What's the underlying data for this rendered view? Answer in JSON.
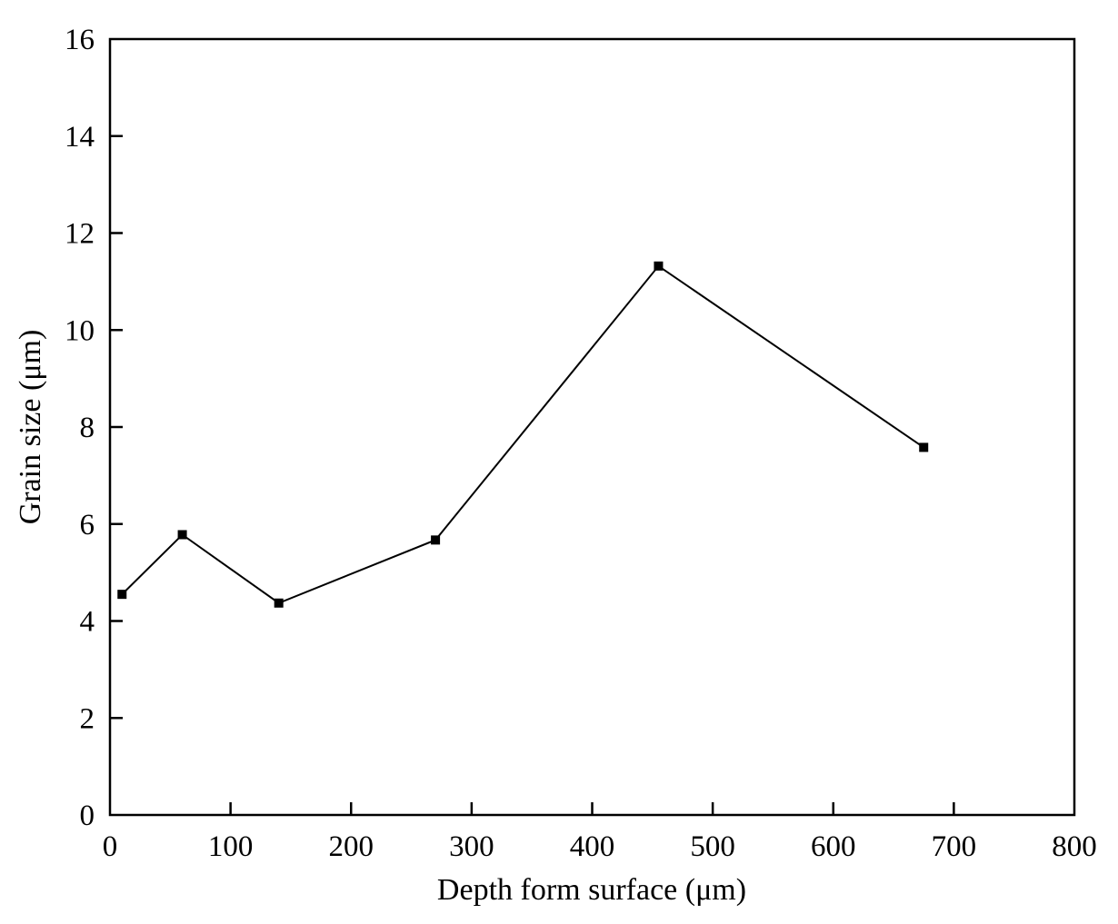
{
  "chart_data": {
    "type": "line",
    "xlabel": "Depth form surface (μm)",
    "ylabel": "Grain size (μm)",
    "xlim": [
      0,
      800
    ],
    "ylim": [
      0,
      16
    ],
    "x_ticks": [
      0,
      100,
      200,
      300,
      400,
      500,
      600,
      700,
      800
    ],
    "y_ticks": [
      0,
      2,
      4,
      6,
      8,
      10,
      12,
      14,
      16
    ],
    "grid": false,
    "legend": "none",
    "series": [
      {
        "x": [
          10,
          60,
          140,
          270,
          455,
          675
        ],
        "y": [
          4.55,
          5.78,
          4.37,
          5.67,
          11.32,
          7.58
        ],
        "color": "#000000",
        "marker": "square"
      }
    ]
  }
}
